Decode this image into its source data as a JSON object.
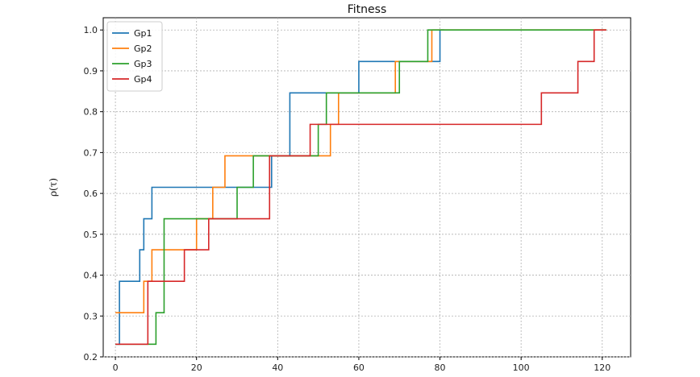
{
  "chart_data": {
    "type": "line",
    "step": true,
    "title": "Fitness",
    "xlabel": "",
    "ylabel": "ρ(τ)",
    "xlim": [
      -3,
      127
    ],
    "ylim": [
      0.2,
      1.03
    ],
    "xticks": [
      0,
      20,
      40,
      60,
      80,
      100,
      120
    ],
    "yticks": [
      0.2,
      0.3,
      0.4,
      0.5,
      0.6,
      0.7,
      0.8,
      0.9,
      1.0
    ],
    "ytick_labels": [
      "0.2",
      "0.3",
      "0.4",
      "0.5",
      "0.6",
      "0.7",
      "0.8",
      "0.9",
      "1.0"
    ],
    "grid": true,
    "legend_position": "top-left",
    "series": [
      {
        "name": "Gp1",
        "color": "#1f77b4",
        "points": [
          [
            0,
            0.231
          ],
          [
            1,
            0.385
          ],
          [
            6,
            0.462
          ],
          [
            7,
            0.538
          ],
          [
            8,
            0.538
          ],
          [
            9,
            0.615
          ],
          [
            38,
            0.615
          ],
          [
            38.5,
            0.692
          ],
          [
            43,
            0.846
          ],
          [
            60,
            0.923
          ],
          [
            77,
            0.923
          ],
          [
            80,
            1.0
          ],
          [
            81,
            1.0
          ]
        ]
      },
      {
        "name": "Gp2",
        "color": "#ff7f0e",
        "points": [
          [
            0,
            0.308
          ],
          [
            7,
            0.385
          ],
          [
            9,
            0.462
          ],
          [
            20,
            0.538
          ],
          [
            24,
            0.615
          ],
          [
            27,
            0.692
          ],
          [
            38,
            0.692
          ],
          [
            53,
            0.769
          ],
          [
            55,
            0.846
          ],
          [
            69,
            0.923
          ],
          [
            78,
            1.0
          ],
          [
            121,
            1.0
          ]
        ]
      },
      {
        "name": "Gp3",
        "color": "#2ca02c",
        "points": [
          [
            0,
            0.231
          ],
          [
            10,
            0.308
          ],
          [
            12,
            0.538
          ],
          [
            30,
            0.615
          ],
          [
            34,
            0.692
          ],
          [
            50,
            0.769
          ],
          [
            52,
            0.846
          ],
          [
            70,
            0.923
          ],
          [
            77,
            1.0
          ],
          [
            121,
            1.0
          ]
        ]
      },
      {
        "name": "Gp4",
        "color": "#d62728",
        "points": [
          [
            0,
            0.231
          ],
          [
            8,
            0.385
          ],
          [
            17,
            0.462
          ],
          [
            23,
            0.538
          ],
          [
            38,
            0.692
          ],
          [
            48,
            0.769
          ],
          [
            105,
            0.846
          ],
          [
            114,
            0.923
          ],
          [
            118,
            1.0
          ],
          [
            121,
            1.0
          ]
        ]
      }
    ]
  }
}
